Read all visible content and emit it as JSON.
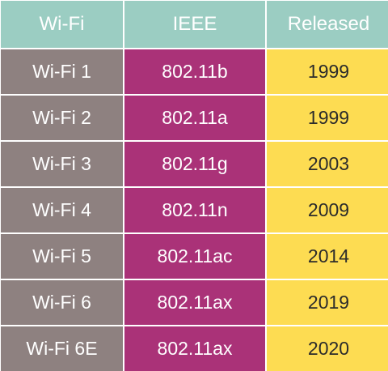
{
  "headers": [
    "Wi-Fi",
    "IEEE",
    "Released"
  ],
  "rows": [
    {
      "wifi": "Wi-Fi 1",
      "ieee": "802.11b",
      "released": "1999"
    },
    {
      "wifi": "Wi-Fi 2",
      "ieee": "802.11a",
      "released": "1999"
    },
    {
      "wifi": "Wi-Fi 3",
      "ieee": "802.11g",
      "released": "2003"
    },
    {
      "wifi": "Wi-Fi 4",
      "ieee": "802.11n",
      "released": "2009"
    },
    {
      "wifi": "Wi-Fi 5",
      "ieee": "802.11ac",
      "released": "2014"
    },
    {
      "wifi": "Wi-Fi 6",
      "ieee": "802.11ax",
      "released": "2019"
    },
    {
      "wifi": "Wi-Fi 6E",
      "ieee": "802.11ax",
      "released": "2020"
    }
  ],
  "colors": {
    "header": "#9bcdc2",
    "wifi_column": "#8e8180",
    "ieee_column": "#aa3278",
    "released_column": "#fddc52"
  }
}
